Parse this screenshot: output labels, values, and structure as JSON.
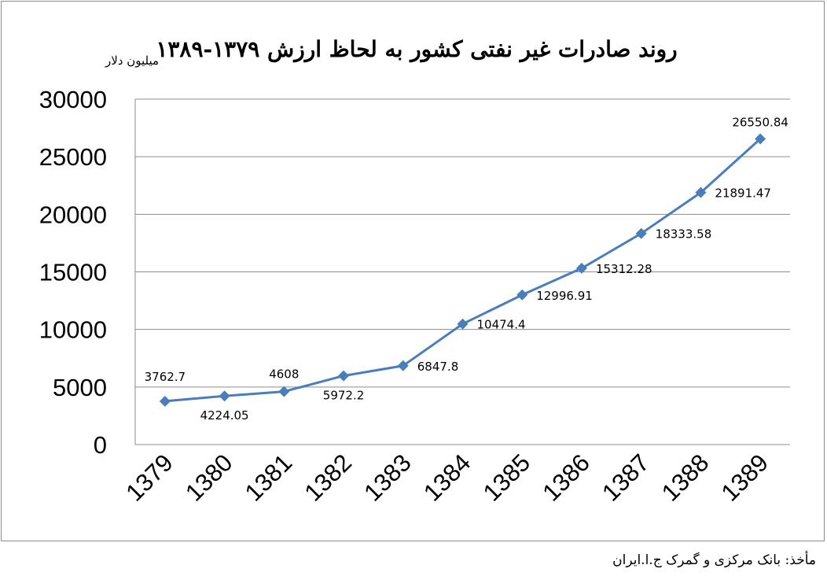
{
  "chart_data": {
    "type": "line",
    "title": "روند صادرات غیر نفتی کشور به لحاظ ارزش ۱۳۷۹-۱۳۸۹",
    "ylabel": "میلیون دلار",
    "xlabel": "",
    "categories": [
      "1379",
      "1380",
      "1381",
      "1382",
      "1383",
      "1384",
      "1385",
      "1386",
      "1387",
      "1388",
      "1389"
    ],
    "values": [
      3762.7,
      4224.05,
      4608,
      5972.2,
      6847.8,
      10474.4,
      12996.91,
      15312.28,
      18333.58,
      21891.47,
      26550.84
    ],
    "data_labels": [
      "3762.7",
      "4224.05",
      "4608",
      "5972.2",
      "6847.8",
      "10474.4",
      "12996.91",
      "15312.28",
      "18333.58",
      "21891.47",
      "26550.84"
    ],
    "ylim": [
      0,
      30000
    ],
    "yticks": [
      "0",
      "5000",
      "10000",
      "15000",
      "20000",
      "25000",
      "30000"
    ],
    "grid": true,
    "legend": "none",
    "line_color": "#4a7ebb",
    "grid_color": "#8c8c8c"
  },
  "source_note": "مأخذ: بانک مرکزی و گمرک ج.ا.ایران"
}
